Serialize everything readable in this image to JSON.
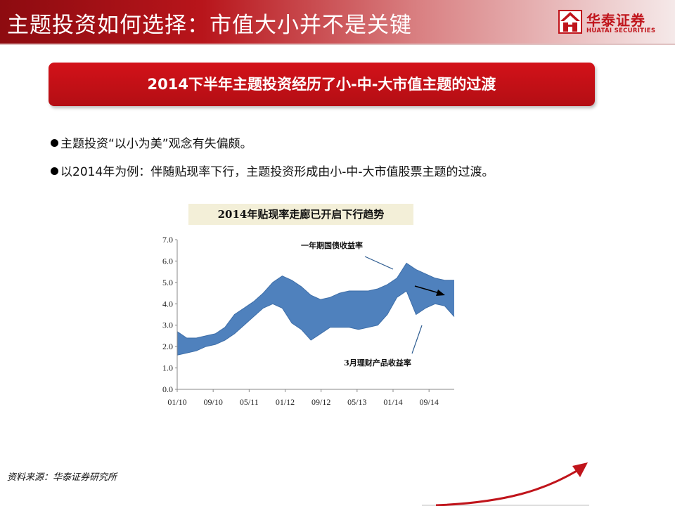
{
  "slide": {
    "title": "主题投资如何选择：市值大小并不是关键",
    "logo": {
      "cn": "华泰证券",
      "en": "HUATAI SECURITIES"
    },
    "banner": "2014下半年主题投资经历了小-中-大市值主题的过渡",
    "bullets": [
      "主题投资“以小为美”观念有失偏颇。",
      "以2014年为例：伴随贴现率下行，主题投资形成由小-中-大市值股票主题的过渡。"
    ],
    "chart_title": "2014年贴现率走廊已开启下行趋势",
    "source": "资料来源：华泰证券研究所"
  },
  "colors": {
    "brand_red": "#c0141b",
    "band_fill": "#4f81bd"
  },
  "chart_data": {
    "type": "area",
    "title": "2014年贴现率走廊已开启下行趋势",
    "xlabel": "",
    "ylabel": "",
    "ylim": [
      0,
      7
    ],
    "yticks": [
      "0.0",
      "1.0",
      "2.0",
      "3.0",
      "4.0",
      "5.0",
      "6.0",
      "7.0"
    ],
    "x_tick_labels": [
      "01/10",
      "09/10",
      "05/11",
      "01/12",
      "09/12",
      "05/13",
      "01/14",
      "09/14"
    ],
    "grid": false,
    "legend": "none",
    "annotations": [
      "一年期国债收益率",
      "3月理财产品收益率"
    ],
    "x": [
      "2010-01",
      "2010-03",
      "2010-05",
      "2010-07",
      "2010-09",
      "2010-11",
      "2011-01",
      "2011-03",
      "2011-05",
      "2011-07",
      "2011-09",
      "2011-11",
      "2012-01",
      "2012-03",
      "2012-05",
      "2012-07",
      "2012-09",
      "2012-11",
      "2013-01",
      "2013-03",
      "2013-05",
      "2013-07",
      "2013-09",
      "2013-11",
      "2014-01",
      "2014-03",
      "2014-05",
      "2014-07",
      "2014-09",
      "2014-11"
    ],
    "series": [
      {
        "name": "一年期国债收益率",
        "values": [
          2.7,
          2.4,
          2.4,
          2.5,
          2.6,
          2.9,
          3.5,
          3.8,
          4.1,
          4.5,
          5.0,
          5.3,
          5.1,
          4.8,
          4.4,
          4.2,
          4.3,
          4.5,
          4.6,
          4.6,
          4.6,
          4.7,
          4.9,
          5.2,
          5.9,
          5.6,
          5.4,
          5.2,
          5.1,
          5.1
        ]
      },
      {
        "name": "3月理财产品收益率",
        "values": [
          1.6,
          1.7,
          1.8,
          2.0,
          2.1,
          2.3,
          2.6,
          3.0,
          3.4,
          3.8,
          4.0,
          3.8,
          3.1,
          2.8,
          2.3,
          2.6,
          2.9,
          2.9,
          2.9,
          2.8,
          2.9,
          3.0,
          3.5,
          4.3,
          4.6,
          3.5,
          3.8,
          4.0,
          3.9,
          3.4
        ]
      }
    ]
  }
}
